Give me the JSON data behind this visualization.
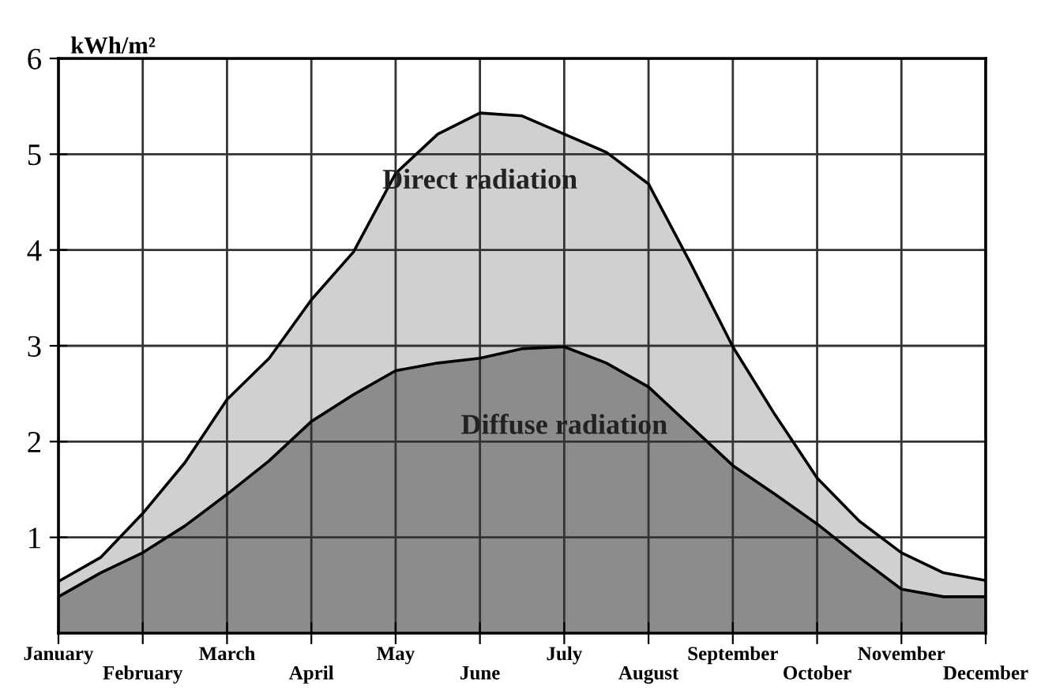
{
  "chart_data": {
    "type": "area",
    "stacked": true,
    "ylabel": "kWh/m²",
    "categories": [
      "January",
      null,
      "February",
      null,
      "March",
      null,
      "April",
      null,
      "May",
      null,
      "June",
      null,
      "July",
      null,
      "August",
      null,
      "September",
      null,
      "October",
      null,
      "November",
      null,
      "December"
    ],
    "series": [
      {
        "name": "Diffuse radiation",
        "color": "#8c8c8c",
        "values": [
          0.38,
          0.63,
          0.84,
          1.12,
          1.45,
          1.8,
          2.21,
          2.49,
          2.74,
          2.82,
          2.87,
          2.97,
          2.99,
          2.82,
          2.57,
          2.16,
          1.75,
          1.45,
          1.14,
          0.79,
          0.46,
          0.38,
          0.38
        ]
      },
      {
        "name": "Direct radiation",
        "color": "#d0d0d0",
        "values": [
          0.16,
          0.16,
          0.41,
          0.66,
          0.99,
          1.07,
          1.27,
          1.49,
          2.06,
          2.39,
          2.56,
          2.43,
          2.22,
          2.2,
          2.12,
          1.7,
          1.24,
          0.83,
          0.48,
          0.38,
          0.38,
          0.25,
          0.17
        ]
      }
    ],
    "ylim": [
      0,
      6
    ],
    "yticks": [
      1,
      2,
      3,
      4,
      5,
      6
    ],
    "grid": true
  }
}
